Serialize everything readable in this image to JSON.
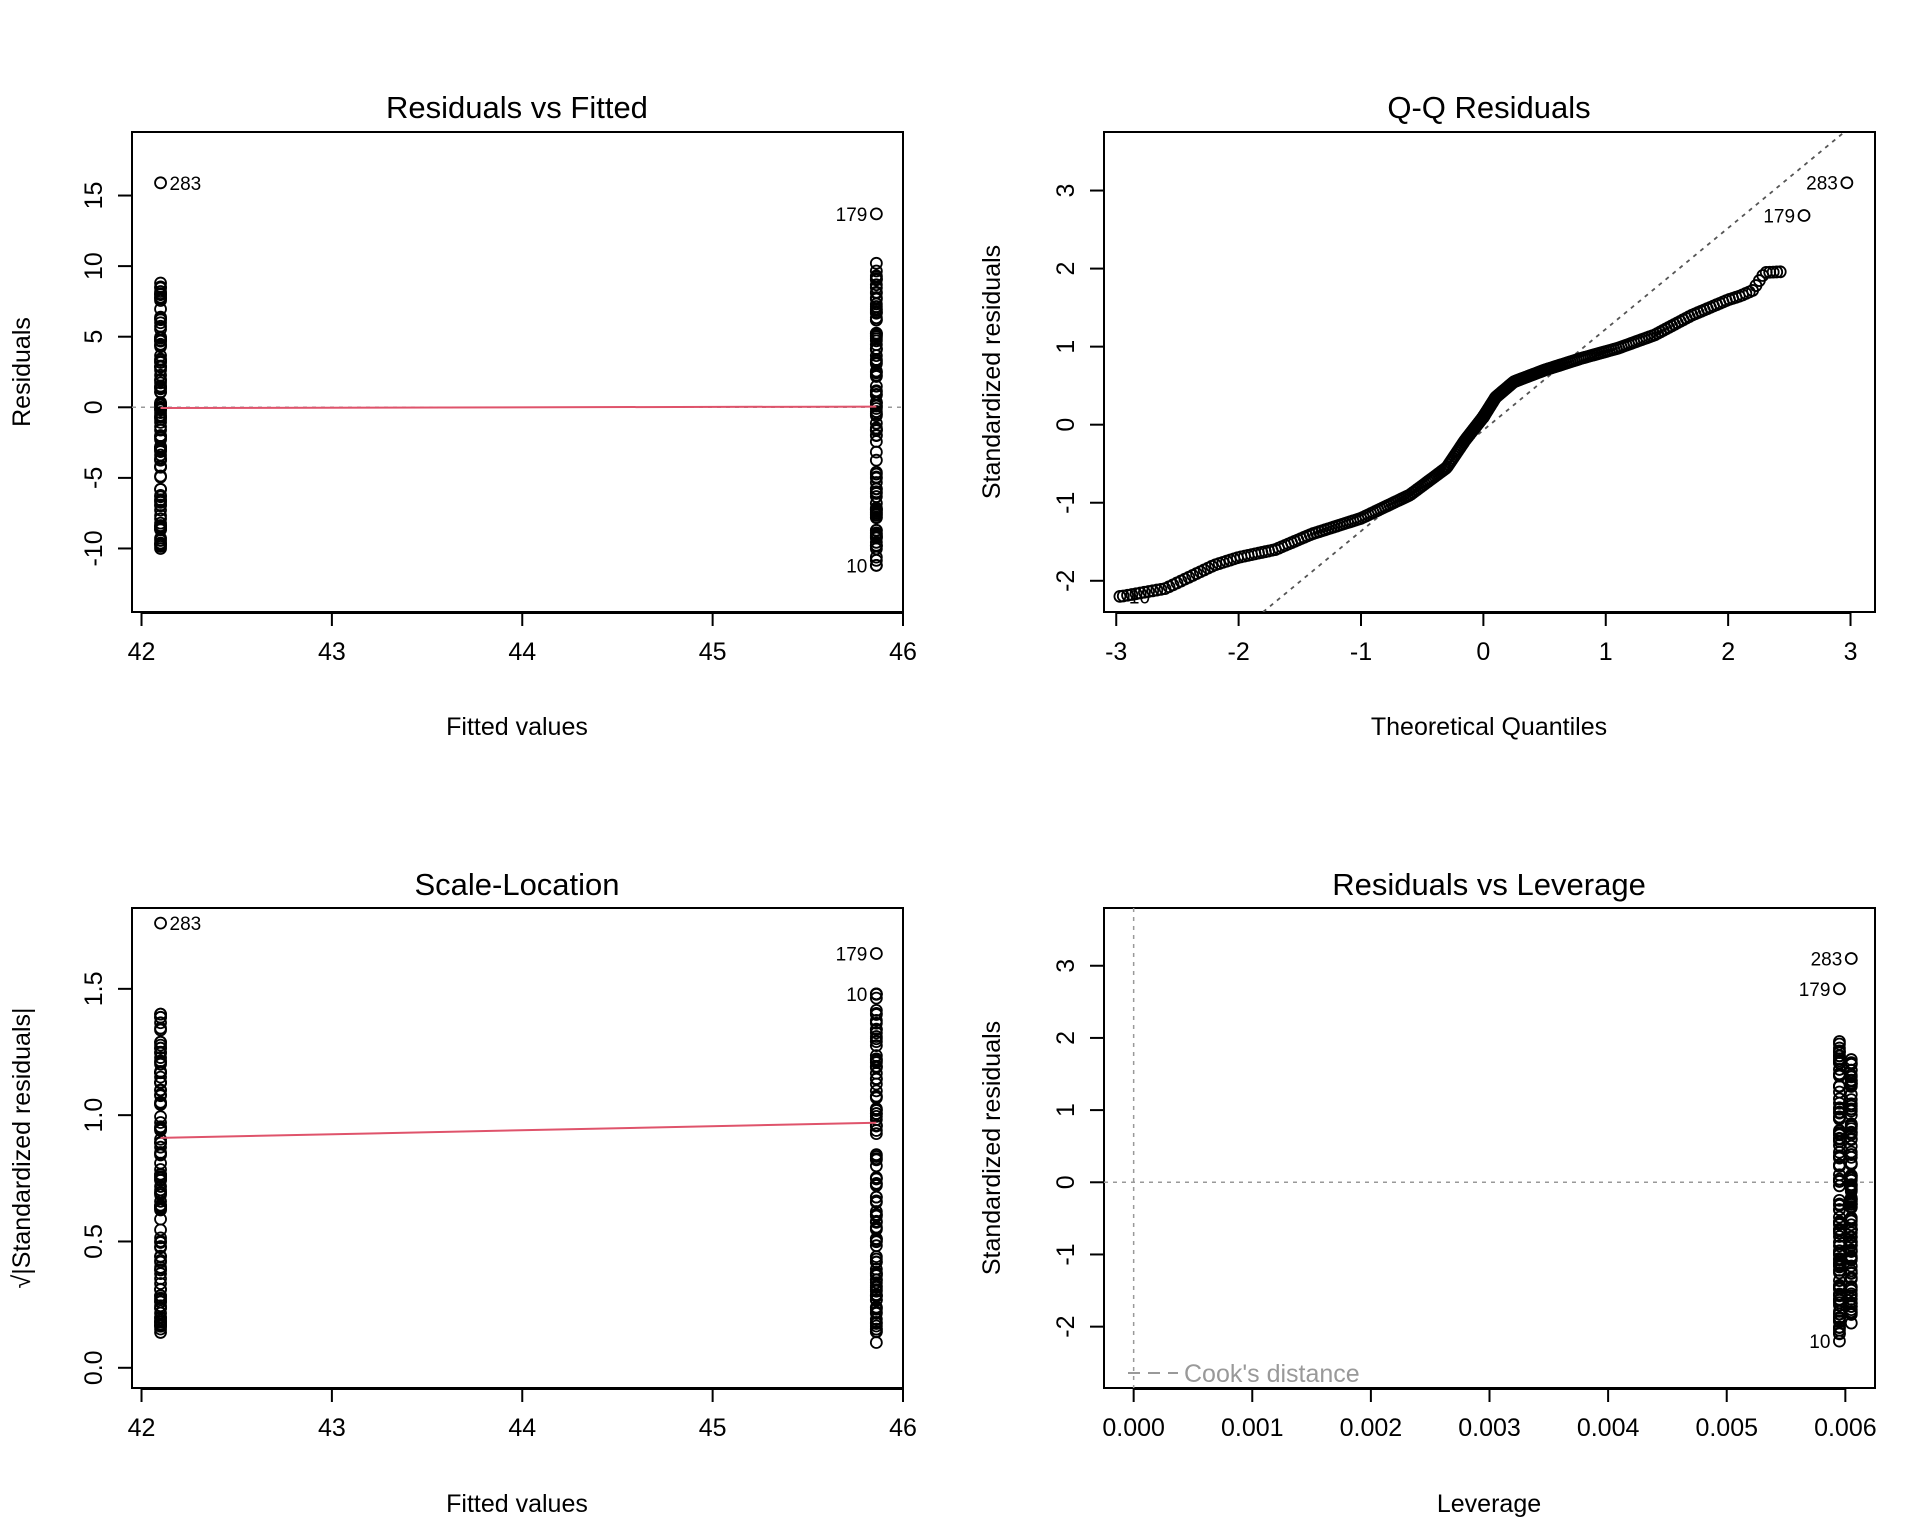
{
  "panels": [
    {
      "title": "Residuals vs Fitted",
      "xlabel": "Fitted values",
      "ylabel": "Residuals",
      "x_ticks": [
        "42",
        "43",
        "44",
        "45",
        "46"
      ],
      "y_ticks": [
        "-10",
        "-5",
        "0",
        "5",
        "10",
        "15"
      ],
      "point_labels": [
        "283",
        "179",
        "10"
      ]
    },
    {
      "title": "Q-Q Residuals",
      "xlabel": "Theoretical Quantiles",
      "ylabel": "Standardized residuals",
      "x_ticks": [
        "-3",
        "-2",
        "-1",
        "0",
        "1",
        "2",
        "3"
      ],
      "y_ticks": [
        "-2",
        "-1",
        "0",
        "1",
        "2",
        "3"
      ],
      "point_labels": [
        "283",
        "179",
        "10"
      ]
    },
    {
      "title": "Scale-Location",
      "xlabel": "Fitted values",
      "ylabel": "√|Standardized residuals|",
      "x_ticks": [
        "42",
        "43",
        "44",
        "45",
        "46"
      ],
      "y_ticks": [
        "0.0",
        "0.5",
        "1.0",
        "1.5"
      ],
      "point_labels": [
        "283",
        "179",
        "10"
      ]
    },
    {
      "title": "Residuals vs Leverage",
      "xlabel": "Leverage",
      "ylabel": "Standardized residuals",
      "x_ticks": [
        "0.000",
        "0.001",
        "0.002",
        "0.003",
        "0.004",
        "0.005",
        "0.006"
      ],
      "y_ticks": [
        "-2",
        "-1",
        "0",
        "1",
        "2",
        "3"
      ],
      "point_labels": [
        "283",
        "179",
        "10"
      ],
      "legend": "Cook's distance"
    }
  ],
  "colors": {
    "points": "#000000",
    "smoother": "#DF536B",
    "reference": "#999999",
    "qq_line": "#555555"
  },
  "chart_data": [
    {
      "type": "scatter",
      "title": "Residuals vs Fitted",
      "xlabel": "Fitted values",
      "ylabel": "Residuals",
      "xlim": [
        41.95,
        46.0
      ],
      "ylim": [
        -14.5,
        19.5
      ],
      "groups": [
        {
          "x": 42.1,
          "y_min": -10.0,
          "y_max": 8.8
        },
        {
          "x": 45.86,
          "y_min": -11.2,
          "y_max": 10.2
        }
      ],
      "labeled_points": [
        {
          "label": "283",
          "x": 42.1,
          "y": 15.9
        },
        {
          "label": "179",
          "x": 45.86,
          "y": 13.7
        },
        {
          "label": "10",
          "x": 45.86,
          "y": -11.2
        }
      ],
      "smoother": [
        [
          42.1,
          -0.05
        ],
        [
          45.86,
          0.05
        ]
      ],
      "reference_line_y": 0
    },
    {
      "type": "scatter",
      "title": "Q-Q Residuals",
      "xlabel": "Theoretical Quantiles",
      "ylabel": "Standardized residuals",
      "xlim": [
        -3.1,
        3.2
      ],
      "ylim": [
        -2.4,
        3.75
      ],
      "curve": [
        [
          -2.96,
          -2.2
        ],
        [
          -2.6,
          -2.1
        ],
        [
          -2.4,
          -1.95
        ],
        [
          -2.2,
          -1.8
        ],
        [
          -2.0,
          -1.7
        ],
        [
          -1.7,
          -1.6
        ],
        [
          -1.4,
          -1.4
        ],
        [
          -1.0,
          -1.2
        ],
        [
          -0.6,
          -0.9
        ],
        [
          -0.3,
          -0.55
        ],
        [
          -0.15,
          -0.2
        ],
        [
          0.0,
          0.1
        ],
        [
          0.1,
          0.35
        ],
        [
          0.25,
          0.55
        ],
        [
          0.5,
          0.7
        ],
        [
          0.8,
          0.85
        ],
        [
          1.1,
          0.98
        ],
        [
          1.4,
          1.15
        ],
        [
          1.7,
          1.4
        ],
        [
          2.0,
          1.6
        ],
        [
          2.1,
          1.65
        ],
        [
          2.2,
          1.72
        ],
        [
          2.3,
          1.95
        ],
        [
          2.44,
          1.96
        ]
      ],
      "labeled_points": [
        {
          "label": "283",
          "x": 2.97,
          "y": 3.1
        },
        {
          "label": "179",
          "x": 2.62,
          "y": 2.68
        },
        {
          "label": "10",
          "x": -2.97,
          "y": -2.2
        }
      ],
      "reference_line": [
        [
          -1.8,
          -2.4
        ],
        [
          2.95,
          3.75
        ]
      ]
    },
    {
      "type": "scatter",
      "title": "Scale-Location",
      "xlabel": "Fitted values",
      "ylabel": "√|Standardized residuals|",
      "xlim": [
        41.95,
        46.0
      ],
      "ylim": [
        -0.08,
        1.82
      ],
      "groups": [
        {
          "x": 42.1,
          "y_min": 0.14,
          "y_max": 1.4
        },
        {
          "x": 45.86,
          "y_min": 0.1,
          "y_max": 1.48
        }
      ],
      "labeled_points": [
        {
          "label": "283",
          "x": 42.1,
          "y": 1.76
        },
        {
          "label": "179",
          "x": 45.86,
          "y": 1.64
        },
        {
          "label": "10",
          "x": 45.86,
          "y": 1.48
        }
      ],
      "smoother": [
        [
          42.1,
          0.91
        ],
        [
          45.86,
          0.97
        ]
      ]
    },
    {
      "type": "scatter",
      "title": "Residuals vs Leverage",
      "xlabel": "Leverage",
      "ylabel": "Standardized residuals",
      "xlim": [
        -0.00025,
        0.00625
      ],
      "ylim": [
        -2.85,
        3.8
      ],
      "groups": [
        {
          "x": 0.00595,
          "y_min": -2.1,
          "y_max": 1.95
        },
        {
          "x": 0.00605,
          "y_min": -1.95,
          "y_max": 1.7
        }
      ],
      "labeled_points": [
        {
          "label": "283",
          "x": 0.00605,
          "y": 3.1
        },
        {
          "label": "179",
          "x": 0.00595,
          "y": 2.68
        },
        {
          "label": "10",
          "x": 0.00595,
          "y": -2.2
        }
      ],
      "reference_line_x": 0,
      "reference_line_y": 0,
      "legend_position": "bottom-left"
    }
  ]
}
